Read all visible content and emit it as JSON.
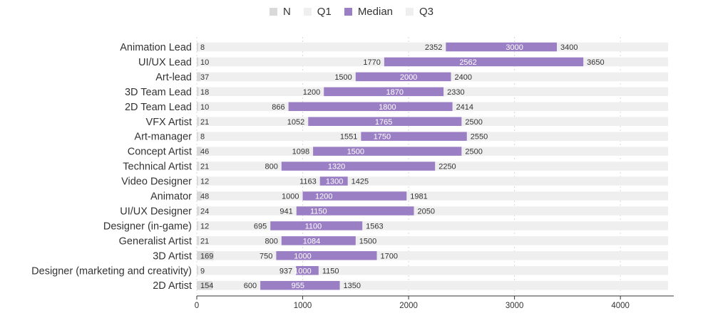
{
  "chart_data": {
    "type": "bar",
    "orientation": "horizontal",
    "title": "",
    "xlabel": "",
    "ylabel": "",
    "xlim": [
      0,
      4450
    ],
    "xticks": [
      0,
      1000,
      2000,
      3000,
      4000
    ],
    "grid": true,
    "legend_position": "top-center",
    "legend": [
      {
        "label": "N",
        "color": "#d9d9d9"
      },
      {
        "label": "Q1",
        "color": "#efefef"
      },
      {
        "label": "Median",
        "color": "#9b7fc4"
      },
      {
        "label": "Q3",
        "color": "#efefef"
      }
    ],
    "colors": {
      "n": "#d9d9d9",
      "track": "#efefef",
      "iqr": "#9b7fc4",
      "median_text": "#ffffff",
      "text": "#333333"
    },
    "categories": [
      "Animation Lead",
      "UI/UX Lead",
      "Art-lead",
      "3D Team Lead",
      "2D Team Lead",
      "VFX Artist",
      "Art-manager",
      "Concept Artist",
      "Technical Artist",
      "Video Designer",
      "Animator",
      "UI/UX Designer",
      "Designer (in-game)",
      "Generalist Artist",
      "3D Artist",
      "Designer (marketing and creativity)",
      "2D Artist"
    ],
    "n": [
      8,
      10,
      37,
      18,
      10,
      21,
      8,
      46,
      21,
      12,
      48,
      24,
      12,
      21,
      169,
      9,
      154
    ],
    "q1": [
      2352,
      1770,
      1500,
      1200,
      866,
      1052,
      1551,
      1098,
      800,
      1163,
      1000,
      941,
      695,
      800,
      750,
      937,
      600
    ],
    "median": [
      3000,
      2562,
      2000,
      1870,
      1800,
      1765,
      1750,
      1500,
      1320,
      1300,
      1200,
      1150,
      1100,
      1084,
      1000,
      1000,
      955
    ],
    "q3": [
      3400,
      3650,
      2400,
      2330,
      2414,
      2500,
      2550,
      2500,
      2250,
      1425,
      1981,
      2050,
      1563,
      1500,
      1700,
      1150,
      1350
    ]
  }
}
